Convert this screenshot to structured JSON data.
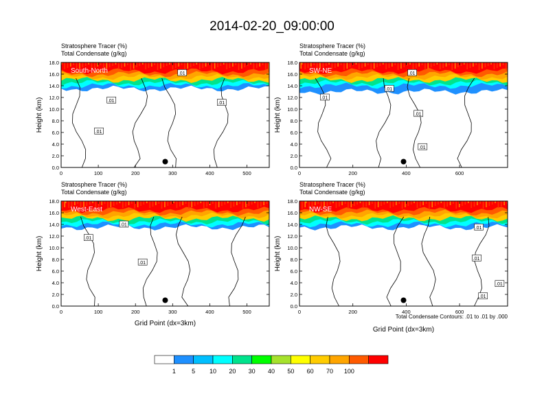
{
  "title": "2014-02-20_09:00:00",
  "panels": [
    {
      "label": "South-North",
      "subtitle1": "Stratosphere Tracer   (%)",
      "subtitle2": "Total Condensate   (g/kg)",
      "ylabel": "Height (km)",
      "xlabel": "",
      "xticks": [
        "0",
        "100",
        "200",
        "300",
        "400",
        "500"
      ],
      "yticks": [
        "0.0",
        "2.0",
        "4.0",
        "6.0",
        "8.0",
        "10.0",
        "12.0",
        "14.0",
        "16.0",
        "18.0"
      ],
      "contour_labels": [
        ".01",
        ".01",
        ".01",
        ".01"
      ]
    },
    {
      "label": "SW-NE",
      "subtitle1": "Stratosphere Tracer   (%)",
      "subtitle2": "Total Condensate   (g/kg)",
      "ylabel": "Height (km)",
      "xlabel": "",
      "xticks": [
        "0",
        "200",
        "400",
        "600"
      ],
      "yticks": [
        "0.0",
        "2.0",
        "4.0",
        "6.0",
        "8.0",
        "10.0",
        "12.0",
        "14.0",
        "16.0",
        "18.0"
      ],
      "contour_labels": [
        ".01",
        ".01",
        ".01",
        ".01",
        ".01"
      ]
    },
    {
      "label": "West-East",
      "subtitle1": "Stratosphere Tracer   (%)",
      "subtitle2": "Total Condensate   (g/kg)",
      "ylabel": "Height (km)",
      "xlabel": "Grid Point (dx=3km)",
      "xticks": [
        "0",
        "100",
        "200",
        "300",
        "400",
        "500"
      ],
      "yticks": [
        "0.0",
        "2.0",
        "4.0",
        "6.0",
        "8.0",
        "10.0",
        "12.0",
        "14.0",
        "16.0",
        "18.0"
      ],
      "contour_labels": [
        ".01",
        ".01",
        ".01"
      ]
    },
    {
      "label": "NW-SE",
      "subtitle1": "Stratosphere Tracer   (%)",
      "subtitle2": "Total Condensate   (g/kg)",
      "ylabel": "Height (km)",
      "xlabel": "Grid Point (dx=3km)",
      "xticks": [
        "0",
        "200",
        "400",
        "600"
      ],
      "yticks": [
        "0.0",
        "2.0",
        "4.0",
        "6.0",
        "8.0",
        "10.0",
        "12.0",
        "14.0",
        "16.0",
        "18.0"
      ],
      "contour_labels": [
        ".01",
        ".01",
        ".01",
        ".01"
      ]
    }
  ],
  "contour_note": "Total Condensate Contours: .01 to .01 by .000",
  "colorbar": {
    "labels": [
      "1",
      "5",
      "10",
      "20",
      "30",
      "40",
      "50",
      "60",
      "70",
      "100"
    ],
    "colors": [
      "#ffffff",
      "#1e90ff",
      "#00bfff",
      "#00ffff",
      "#00e38c",
      "#00ff00",
      "#a6e22c",
      "#ffff00",
      "#ffcc00",
      "#ffa500",
      "#ff5a00",
      "#ff0000"
    ]
  },
  "chart_data": [
    {
      "type": "heatmap",
      "panel": "South-North",
      "x_range": [
        0,
        560
      ],
      "ylim": [
        0,
        18
      ],
      "marker": {
        "x": 280,
        "y": 1.0
      },
      "tracer_layers": [
        {
          "min_percent": 100,
          "bottom_km": 16.5
        },
        {
          "min_percent": 70,
          "bottom_km": 16.0
        },
        {
          "min_percent": 50,
          "bottom_km": 15.5
        },
        {
          "min_percent": 30,
          "bottom_km": 15.0
        },
        {
          "min_percent": 10,
          "bottom_km": 14.5
        },
        {
          "min_percent": 5,
          "bottom_km": 14.0
        },
        {
          "min_percent": 1,
          "bottom_km": 13.5
        }
      ]
    },
    {
      "type": "heatmap",
      "panel": "SW-NE",
      "x_range": [
        0,
        780
      ],
      "ylim": [
        0,
        18
      ],
      "marker": {
        "x": 390,
        "y": 1.0
      },
      "tracer_layers": [
        {
          "min_percent": 100,
          "bottom_km": 16.5
        },
        {
          "min_percent": 70,
          "bottom_km": 16.0
        },
        {
          "min_percent": 50,
          "bottom_km": 15.5
        },
        {
          "min_percent": 30,
          "bottom_km": 15.0
        },
        {
          "min_percent": 10,
          "bottom_km": 14.5
        },
        {
          "min_percent": 5,
          "bottom_km": 14.0
        },
        {
          "min_percent": 1,
          "bottom_km": 13.0
        }
      ]
    },
    {
      "type": "heatmap",
      "panel": "West-East",
      "x_range": [
        0,
        560
      ],
      "ylim": [
        0,
        18
      ],
      "marker": {
        "x": 280,
        "y": 1.0
      },
      "tracer_layers": [
        {
          "min_percent": 100,
          "bottom_km": 16.5
        },
        {
          "min_percent": 70,
          "bottom_km": 16.0
        },
        {
          "min_percent": 50,
          "bottom_km": 15.5
        },
        {
          "min_percent": 30,
          "bottom_km": 15.0
        },
        {
          "min_percent": 10,
          "bottom_km": 14.5
        },
        {
          "min_percent": 5,
          "bottom_km": 14.0
        },
        {
          "min_percent": 1,
          "bottom_km": 13.5
        }
      ]
    },
    {
      "type": "heatmap",
      "panel": "NW-SE",
      "x_range": [
        0,
        780
      ],
      "ylim": [
        0,
        18
      ],
      "marker": {
        "x": 390,
        "y": 1.0
      },
      "tracer_layers": [
        {
          "min_percent": 100,
          "bottom_km": 16.5
        },
        {
          "min_percent": 70,
          "bottom_km": 16.0
        },
        {
          "min_percent": 50,
          "bottom_km": 15.5
        },
        {
          "min_percent": 30,
          "bottom_km": 15.0
        },
        {
          "min_percent": 10,
          "bottom_km": 14.5
        },
        {
          "min_percent": 5,
          "bottom_km": 14.0
        },
        {
          "min_percent": 1,
          "bottom_km": 13.5
        }
      ]
    }
  ]
}
